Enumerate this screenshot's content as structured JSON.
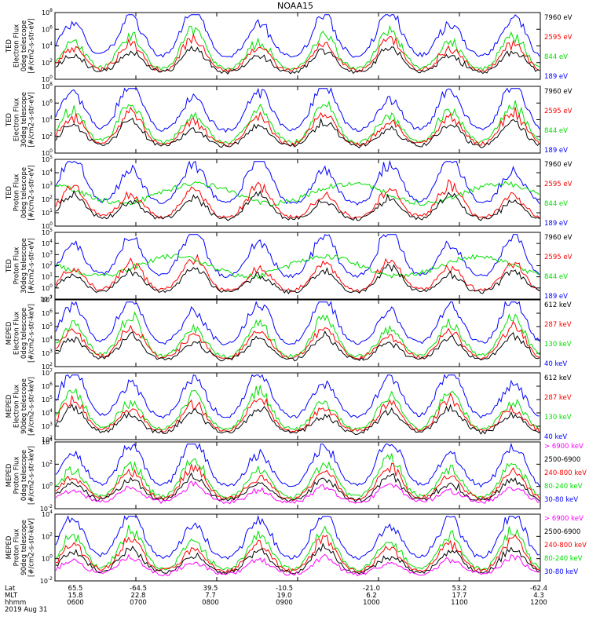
{
  "title": "NOAA15",
  "colors": {
    "blue": "#0000ff",
    "red": "#ff0000",
    "green": "#00e000",
    "black": "#000000",
    "magenta": "#ff00ff"
  },
  "footer": {
    "rows": [
      {
        "label": "Lat",
        "values": [
          "65.5",
          "-64.5",
          "39.5",
          "-10.5",
          "-21.0",
          "53.2",
          "-62.4"
        ]
      },
      {
        "label": "MLT",
        "values": [
          "15.8",
          "22.8",
          "7.7",
          "19.0",
          "6.2",
          "17.7",
          "4.3"
        ]
      },
      {
        "label": "hhmm",
        "values": [
          "0600",
          "0700",
          "0800",
          "0900",
          "1000",
          "1100",
          "1200"
        ]
      }
    ],
    "date": "2019 Aug 31"
  },
  "chart_data": [
    {
      "type": "line",
      "panel_label": [
        "TED",
        "Electron Flux",
        "0deg telescope",
        "[#/cm2-s-str-eV]"
      ],
      "ylog": true,
      "ylim_exp": [
        0,
        8
      ],
      "ytick_labels": [
        "10^0",
        "10^2",
        "10^4",
        "10^6",
        "10^8"
      ],
      "series": [
        {
          "name": "7960 eV",
          "color": "black"
        },
        {
          "name": "2595 eV",
          "color": "red"
        },
        {
          "name": "844 eV",
          "color": "green"
        },
        {
          "name": "189 eV",
          "color": "blue"
        }
      ]
    },
    {
      "type": "line",
      "panel_label": [
        "TED",
        "Electron Flux",
        "30deg telescope",
        "[#/cm2-s-str-eV]"
      ],
      "ylog": true,
      "ylim_exp": [
        0,
        8
      ],
      "ytick_labels": [
        "10^0",
        "10^2",
        "10^4",
        "10^6",
        "10^8"
      ],
      "series": [
        {
          "name": "7960 eV",
          "color": "black"
        },
        {
          "name": "2595 eV",
          "color": "red"
        },
        {
          "name": "844 eV",
          "color": "green"
        },
        {
          "name": "189 eV",
          "color": "blue"
        }
      ]
    },
    {
      "type": "line",
      "panel_label": [
        "TED",
        "Proton Flux",
        "0deg telescope",
        "[#/cm2-s-str-eV]"
      ],
      "ylog": true,
      "ylim_exp": [
        0,
        5
      ],
      "ytick_labels": [
        "10^0",
        "10^1",
        "10^2",
        "10^3",
        "10^4",
        "10^5"
      ],
      "series": [
        {
          "name": "7960 eV",
          "color": "black"
        },
        {
          "name": "2595 eV",
          "color": "red"
        },
        {
          "name": "844 eV",
          "color": "green"
        },
        {
          "name": "189 eV",
          "color": "blue"
        }
      ]
    },
    {
      "type": "line",
      "panel_label": [
        "TED",
        "Proton Flux",
        "30deg telescope",
        "[#/cm2-s-str-eV]"
      ],
      "ylog": true,
      "ylim_exp": [
        -1,
        5
      ],
      "ytick_labels": [
        "10^-1",
        "10^0",
        "10^1",
        "10^2",
        "10^3",
        "10^4",
        "10^5"
      ],
      "series": [
        {
          "name": "7960 eV",
          "color": "black"
        },
        {
          "name": "2595 eV",
          "color": "red"
        },
        {
          "name": "844 eV",
          "color": "green"
        },
        {
          "name": "189 eV",
          "color": "blue"
        }
      ]
    },
    {
      "type": "line",
      "panel_label": [
        "MEPED",
        "Electron Flux",
        "0deg telescope",
        "[#/cm2-s-str-keV]"
      ],
      "ylog": true,
      "ylim_exp": [
        2,
        7
      ],
      "ytick_labels": [
        "10^2",
        "10^3",
        "10^4",
        "10^5",
        "10^6",
        "10^7"
      ],
      "series": [
        {
          "name": "612 keV",
          "color": "black"
        },
        {
          "name": "287 keV",
          "color": "red"
        },
        {
          "name": "130 keV",
          "color": "green"
        },
        {
          "name": "40 keV",
          "color": "blue"
        }
      ]
    },
    {
      "type": "line",
      "panel_label": [
        "MEPED",
        "Electron Flux",
        "90deg telescope",
        "[#/cm2-s-str-keV]"
      ],
      "ylog": true,
      "ylim_exp": [
        2,
        7
      ],
      "ytick_labels": [
        "10^2",
        "10^3",
        "10^4",
        "10^5",
        "10^6",
        "10^7"
      ],
      "series": [
        {
          "name": "612 keV",
          "color": "black"
        },
        {
          "name": "287 keV",
          "color": "red"
        },
        {
          "name": "130 keV",
          "color": "green"
        },
        {
          "name": "40 keV",
          "color": "blue"
        }
      ]
    },
    {
      "type": "line",
      "panel_label": [
        "MEPED",
        "Proton Flux",
        "0deg telescope",
        "[#/cm2-s-str-keV]"
      ],
      "ylog": true,
      "ylim_exp": [
        -2,
        5
      ],
      "ytick_labels": [
        "10^-2",
        "10^0",
        "10^2",
        "10^4"
      ],
      "series": [
        {
          "name": "> 6900 keV",
          "color": "magenta"
        },
        {
          "name": "2500-6900",
          "color": "black"
        },
        {
          "name": "240-800 keV",
          "color": "red"
        },
        {
          "name": "80-240 keV",
          "color": "green"
        },
        {
          "name": "30-80 keV",
          "color": "blue"
        }
      ]
    },
    {
      "type": "line",
      "panel_label": [
        "MEPED",
        "Proton Flux",
        "90deg telescope",
        "[#/cm2-s-str-keV]"
      ],
      "ylog": true,
      "ylim_exp": [
        -2,
        5
      ],
      "ytick_labels": [
        "10^-2",
        "10^0",
        "10^2",
        "10^4"
      ],
      "series": [
        {
          "name": "> 6900 keV",
          "color": "magenta"
        },
        {
          "name": "2500-6900",
          "color": "black"
        },
        {
          "name": "240-800 keV",
          "color": "red"
        },
        {
          "name": "80-240 keV",
          "color": "green"
        },
        {
          "name": "30-80 keV",
          "color": "blue"
        }
      ]
    }
  ]
}
